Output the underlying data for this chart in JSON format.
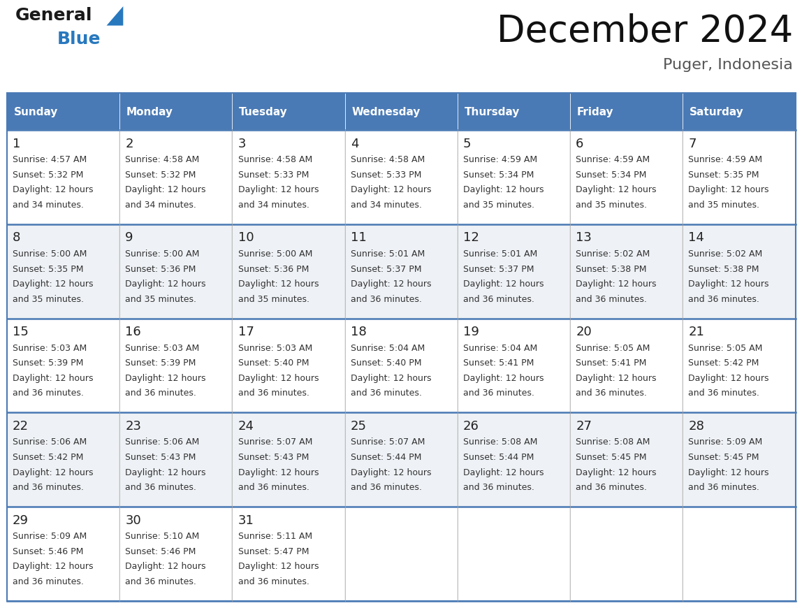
{
  "title": "December 2024",
  "subtitle": "Puger, Indonesia",
  "header_color": "#4a7ab5",
  "header_text_color": "#ffffff",
  "cell_bg_white": "#ffffff",
  "cell_bg_gray": "#eef1f5",
  "border_color": "#4a7ab5",
  "text_color": "#333333",
  "day_num_color": "#222222",
  "days_of_week": [
    "Sunday",
    "Monday",
    "Tuesday",
    "Wednesday",
    "Thursday",
    "Friday",
    "Saturday"
  ],
  "weeks": [
    [
      {
        "day": "1",
        "sunrise": "4:57 AM",
        "sunset": "5:32 PM",
        "daylight": "and 34 minutes."
      },
      {
        "day": "2",
        "sunrise": "4:58 AM",
        "sunset": "5:32 PM",
        "daylight": "and 34 minutes."
      },
      {
        "day": "3",
        "sunrise": "4:58 AM",
        "sunset": "5:33 PM",
        "daylight": "and 34 minutes."
      },
      {
        "day": "4",
        "sunrise": "4:58 AM",
        "sunset": "5:33 PM",
        "daylight": "and 34 minutes."
      },
      {
        "day": "5",
        "sunrise": "4:59 AM",
        "sunset": "5:34 PM",
        "daylight": "and 35 minutes."
      },
      {
        "day": "6",
        "sunrise": "4:59 AM",
        "sunset": "5:34 PM",
        "daylight": "and 35 minutes."
      },
      {
        "day": "7",
        "sunrise": "4:59 AM",
        "sunset": "5:35 PM",
        "daylight": "and 35 minutes."
      }
    ],
    [
      {
        "day": "8",
        "sunrise": "5:00 AM",
        "sunset": "5:35 PM",
        "daylight": "and 35 minutes."
      },
      {
        "day": "9",
        "sunrise": "5:00 AM",
        "sunset": "5:36 PM",
        "daylight": "and 35 minutes."
      },
      {
        "day": "10",
        "sunrise": "5:00 AM",
        "sunset": "5:36 PM",
        "daylight": "and 35 minutes."
      },
      {
        "day": "11",
        "sunrise": "5:01 AM",
        "sunset": "5:37 PM",
        "daylight": "and 36 minutes."
      },
      {
        "day": "12",
        "sunrise": "5:01 AM",
        "sunset": "5:37 PM",
        "daylight": "and 36 minutes."
      },
      {
        "day": "13",
        "sunrise": "5:02 AM",
        "sunset": "5:38 PM",
        "daylight": "and 36 minutes."
      },
      {
        "day": "14",
        "sunrise": "5:02 AM",
        "sunset": "5:38 PM",
        "daylight": "and 36 minutes."
      }
    ],
    [
      {
        "day": "15",
        "sunrise": "5:03 AM",
        "sunset": "5:39 PM",
        "daylight": "and 36 minutes."
      },
      {
        "day": "16",
        "sunrise": "5:03 AM",
        "sunset": "5:39 PM",
        "daylight": "and 36 minutes."
      },
      {
        "day": "17",
        "sunrise": "5:03 AM",
        "sunset": "5:40 PM",
        "daylight": "and 36 minutes."
      },
      {
        "day": "18",
        "sunrise": "5:04 AM",
        "sunset": "5:40 PM",
        "daylight": "and 36 minutes."
      },
      {
        "day": "19",
        "sunrise": "5:04 AM",
        "sunset": "5:41 PM",
        "daylight": "and 36 minutes."
      },
      {
        "day": "20",
        "sunrise": "5:05 AM",
        "sunset": "5:41 PM",
        "daylight": "and 36 minutes."
      },
      {
        "day": "21",
        "sunrise": "5:05 AM",
        "sunset": "5:42 PM",
        "daylight": "and 36 minutes."
      }
    ],
    [
      {
        "day": "22",
        "sunrise": "5:06 AM",
        "sunset": "5:42 PM",
        "daylight": "and 36 minutes."
      },
      {
        "day": "23",
        "sunrise": "5:06 AM",
        "sunset": "5:43 PM",
        "daylight": "and 36 minutes."
      },
      {
        "day": "24",
        "sunrise": "5:07 AM",
        "sunset": "5:43 PM",
        "daylight": "and 36 minutes."
      },
      {
        "day": "25",
        "sunrise": "5:07 AM",
        "sunset": "5:44 PM",
        "daylight": "and 36 minutes."
      },
      {
        "day": "26",
        "sunrise": "5:08 AM",
        "sunset": "5:44 PM",
        "daylight": "and 36 minutes."
      },
      {
        "day": "27",
        "sunrise": "5:08 AM",
        "sunset": "5:45 PM",
        "daylight": "and 36 minutes."
      },
      {
        "day": "28",
        "sunrise": "5:09 AM",
        "sunset": "5:45 PM",
        "daylight": "and 36 minutes."
      }
    ],
    [
      {
        "day": "29",
        "sunrise": "5:09 AM",
        "sunset": "5:46 PM",
        "daylight": "and 36 minutes."
      },
      {
        "day": "30",
        "sunrise": "5:10 AM",
        "sunset": "5:46 PM",
        "daylight": "and 36 minutes."
      },
      {
        "day": "31",
        "sunrise": "5:11 AM",
        "sunset": "5:47 PM",
        "daylight": "and 36 minutes."
      },
      null,
      null,
      null,
      null
    ]
  ],
  "logo_general_color": "#1a1a1a",
  "logo_blue_color": "#2878be",
  "logo_triangle_color": "#2878be",
  "title_fontsize": 38,
  "subtitle_fontsize": 16,
  "header_fontsize": 11,
  "day_num_fontsize": 13,
  "cell_text_fontsize": 9
}
